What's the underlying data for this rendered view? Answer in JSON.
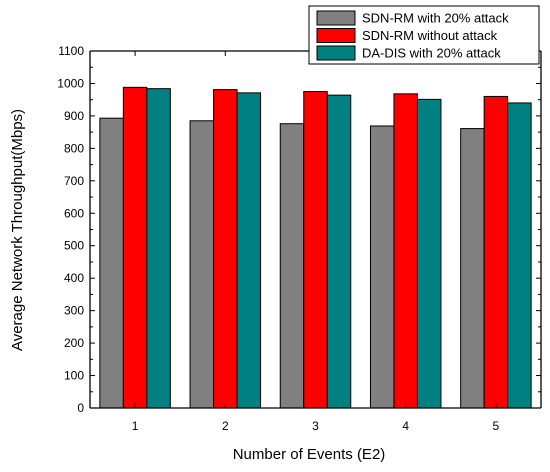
{
  "chart_data": {
    "type": "bar",
    "title": "",
    "xlabel": "Number of Events (E2)",
    "ylabel": "Average Network Throughput(Mbps)",
    "ylim": [
      0,
      1100
    ],
    "yticks": [
      0,
      100,
      200,
      300,
      400,
      500,
      600,
      700,
      800,
      900,
      1000,
      1100
    ],
    "categories": [
      "1",
      "2",
      "3",
      "4",
      "5"
    ],
    "grid": false,
    "legend_position": "top-right",
    "series": [
      {
        "name": "SDN-RM with 20% attack",
        "color": "#808080",
        "values": [
          893,
          885,
          876,
          869,
          861
        ]
      },
      {
        "name": "SDN-RM without attack",
        "color": "#ff0000",
        "values": [
          988,
          981,
          975,
          968,
          960
        ]
      },
      {
        "name": "DA-DIS with 20% attack",
        "color": "#008080",
        "values": [
          984,
          971,
          964,
          951,
          940
        ]
      }
    ]
  }
}
